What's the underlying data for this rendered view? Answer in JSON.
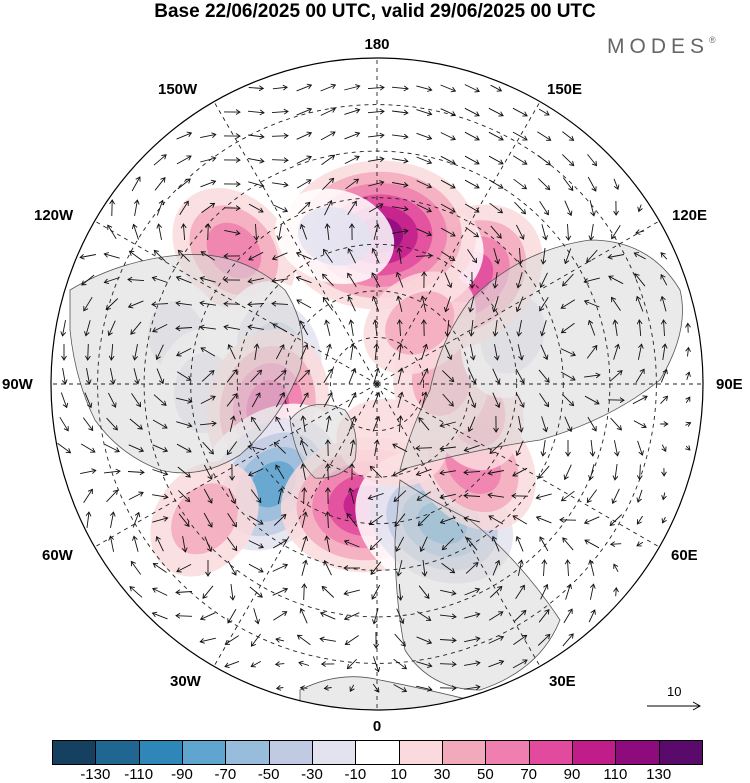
{
  "title": "Base 22/06/2025 00 UTC, valid 29/06/2025 00 UTC",
  "brand": "MODES",
  "brand_mark": "®",
  "longitude_labels": {
    "lon_180": "180",
    "lon_150w": "150W",
    "lon_150e": "150E",
    "lon_120w": "120W",
    "lon_120e": "120E",
    "lon_90w": "90W",
    "lon_90e": "90E",
    "lon_60w": "60W",
    "lon_60e": "60E",
    "lon_30w": "30W",
    "lon_30e": "30E",
    "lon_0": "0"
  },
  "vector_scale_label": "10",
  "colorbar": {
    "colors": [
      "#16405f",
      "#1f6690",
      "#2f86b8",
      "#5fa5cf",
      "#98bcdc",
      "#c0cbe3",
      "#e3e3f0",
      "#ffffff",
      "#fadadd",
      "#f3a9bc",
      "#ef7fae",
      "#e24a9d",
      "#c01d8a",
      "#8d0b7d",
      "#5a0a6b"
    ],
    "ticks": [
      "-130",
      "-110",
      "-90",
      "-70",
      "-50",
      "-30",
      "-10",
      "10",
      "30",
      "50",
      "70",
      "90",
      "110",
      "130"
    ]
  },
  "anomaly_features": [
    {
      "lon": -133,
      "colat": 42,
      "value": 50
    },
    {
      "lon": -103,
      "colat": 44,
      "value": -30
    },
    {
      "lon": -107,
      "colat": 22,
      "value": -60
    },
    {
      "lon": -87,
      "colat": 37,
      "value": -40
    },
    {
      "lon": -78,
      "colat": 24,
      "value": 70
    },
    {
      "lon": -46,
      "colat": 31,
      "value": -95
    },
    {
      "lon": -52,
      "colat": 47,
      "value": 35
    },
    {
      "lon": -4,
      "colat": 26,
      "value": 90
    },
    {
      "lon": 25,
      "colat": 33,
      "value": -95
    },
    {
      "lon": 50,
      "colat": 27,
      "value": 55
    },
    {
      "lon": 75,
      "colat": 22,
      "value": 30
    },
    {
      "lon": 96,
      "colat": 14,
      "value": 35
    },
    {
      "lon": 110,
      "colat": 31,
      "value": -40
    },
    {
      "lon": 140,
      "colat": 30,
      "value": 80
    },
    {
      "lon": 164,
      "colat": 28,
      "value": -55
    },
    {
      "lon": 179,
      "colat": 32,
      "value": 110
    },
    {
      "lon": -164,
      "colat": 33,
      "value": -30
    },
    {
      "lon": 145,
      "colat": 16,
      "value": 30
    },
    {
      "lon": 14,
      "colat": 13,
      "value": 20
    }
  ]
}
